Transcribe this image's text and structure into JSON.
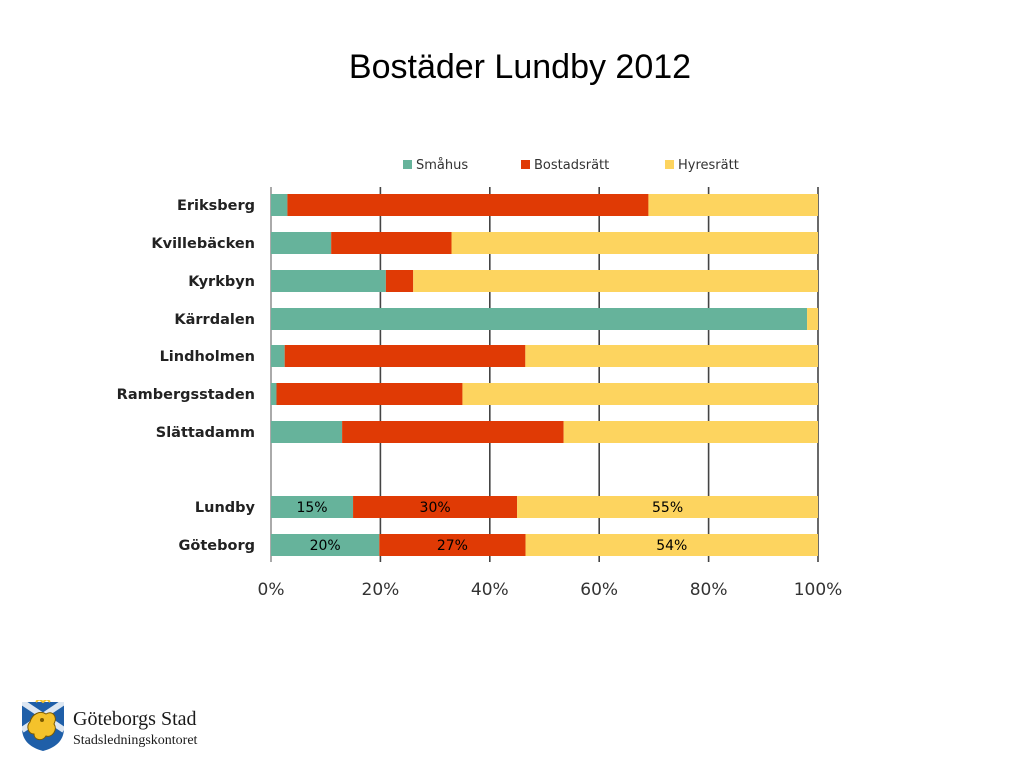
{
  "slide": {
    "org_name": "Göteborgs Stad",
    "org_dept": "Stadsledningskontoret",
    "logo_icon": "goteborg-crest-icon"
  },
  "chart_data": {
    "type": "bar",
    "orientation": "horizontal",
    "stacked": "percent",
    "title": "Bostäder Lundby 2012",
    "categories": [
      "Eriksberg",
      "Kvillebäcken",
      "Kyrkbyn",
      "Kärrdalen",
      "Lindholmen",
      "Rambergsstaden",
      "Slättadamm",
      "",
      "Lundby",
      "Göteborg"
    ],
    "series": [
      {
        "name": "Småhus",
        "color": "#66b39b",
        "values": [
          3,
          11,
          21,
          98,
          2.5,
          1,
          13,
          null,
          15,
          20
        ]
      },
      {
        "name": "Bostadsrätt",
        "color": "#e03a05",
        "values": [
          66,
          22,
          5,
          0,
          44,
          34,
          40.5,
          null,
          30,
          27
        ]
      },
      {
        "name": "Hyresrätt",
        "color": "#fdd45f",
        "values": [
          31,
          67,
          74,
          2,
          53.5,
          65,
          46.5,
          null,
          55,
          54
        ]
      }
    ],
    "data_labels": [
      {
        "category": "Lundby",
        "labels": [
          "15%",
          "30%",
          "55%"
        ]
      },
      {
        "category": "Göteborg",
        "labels": [
          "20%",
          "27%",
          "54%"
        ]
      }
    ],
    "x_ticks": [
      "0%",
      "20%",
      "40%",
      "60%",
      "80%",
      "100%"
    ],
    "xlim": [
      0,
      100
    ],
    "grid": true,
    "legend_position": "top"
  }
}
